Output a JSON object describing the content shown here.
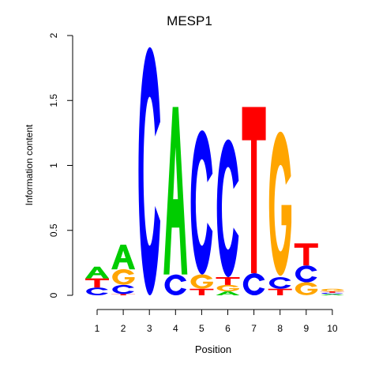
{
  "chart_data": {
    "type": "sequence-logo",
    "title": "MESP1",
    "xlabel": "Position",
    "ylabel": "Information content",
    "ylim": [
      0,
      2
    ],
    "yticks": [
      "0",
      "0.5",
      "1",
      "1.5",
      "2"
    ],
    "xticks": [
      "1",
      "2",
      "3",
      "4",
      "5",
      "6",
      "7",
      "8",
      "9",
      "10"
    ],
    "colors": {
      "A": "#00cc00",
      "C": "#0000ff",
      "G": "#ffa500",
      "T": "#ff0000"
    },
    "positions": [
      {
        "pos": "1",
        "letters": [
          {
            "base": "C",
            "height": 0.06
          },
          {
            "base": "T",
            "height": 0.07
          },
          {
            "base": "A",
            "height": 0.09
          }
        ]
      },
      {
        "pos": "2",
        "letters": [
          {
            "base": "T",
            "height": 0.01
          },
          {
            "base": "C",
            "height": 0.07
          },
          {
            "base": "G",
            "height": 0.12
          },
          {
            "base": "A",
            "height": 0.19
          }
        ]
      },
      {
        "pos": "3",
        "letters": [
          {
            "base": "C",
            "height": 1.91
          }
        ]
      },
      {
        "pos": "4",
        "letters": [
          {
            "base": "C",
            "height": 0.16
          },
          {
            "base": "A",
            "height": 1.29
          }
        ]
      },
      {
        "pos": "5",
        "letters": [
          {
            "base": "T",
            "height": 0.05
          },
          {
            "base": "G",
            "height": 0.11
          },
          {
            "base": "C",
            "height": 1.11
          }
        ]
      },
      {
        "pos": "6",
        "letters": [
          {
            "base": "A",
            "height": 0.03
          },
          {
            "base": "G",
            "height": 0.05
          },
          {
            "base": "T",
            "height": 0.06
          },
          {
            "base": "C",
            "height": 1.06
          }
        ]
      },
      {
        "pos": "7",
        "letters": [
          {
            "base": "C",
            "height": 0.17
          },
          {
            "base": "T",
            "height": 1.28
          }
        ]
      },
      {
        "pos": "8",
        "letters": [
          {
            "base": "T",
            "height": 0.05
          },
          {
            "base": "C",
            "height": 0.09
          },
          {
            "base": "G",
            "height": 1.11
          }
        ]
      },
      {
        "pos": "9",
        "letters": [
          {
            "base": "G",
            "height": 0.1
          },
          {
            "base": "C",
            "height": 0.13
          },
          {
            "base": "T",
            "height": 0.17
          }
        ]
      },
      {
        "pos": "10",
        "letters": [
          {
            "base": "A",
            "height": 0.01
          },
          {
            "base": "C",
            "height": 0.01
          },
          {
            "base": "T",
            "height": 0.01
          },
          {
            "base": "G",
            "height": 0.02
          }
        ]
      }
    ]
  }
}
